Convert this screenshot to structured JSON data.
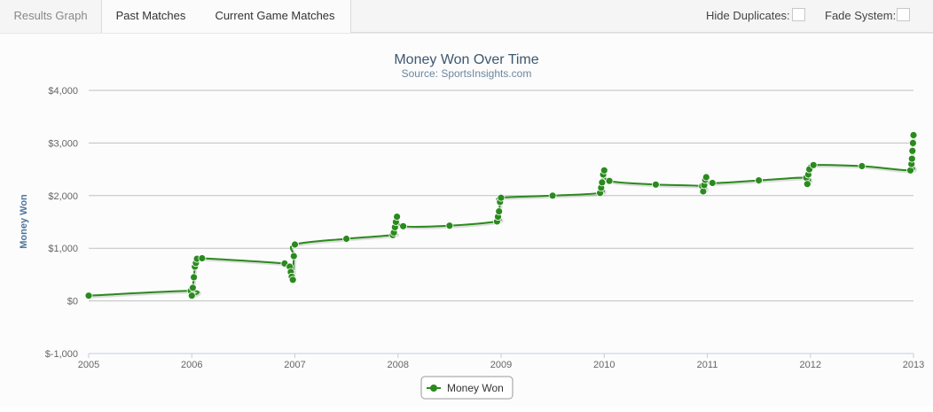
{
  "tabs": [
    {
      "label": "Results Graph",
      "active": true
    },
    {
      "label": "Past Matches",
      "active": false
    },
    {
      "label": "Current Game Matches",
      "active": false
    }
  ],
  "options": {
    "hide_duplicates_label": "Hide Duplicates:",
    "hide_duplicates_checked": false,
    "fade_system_label": "Fade System:",
    "fade_system_checked": false
  },
  "chart_data": {
    "type": "line",
    "title": "Money Won Over Time",
    "subtitle": "Source: SportsInsights.com",
    "ylabel": "Money Won",
    "xlim": [
      2005,
      2013
    ],
    "ylim": [
      -1000,
      4000
    ],
    "x_ticks": [
      "2005",
      "2006",
      "2007",
      "2008",
      "2009",
      "2010",
      "2011",
      "2012",
      "2013"
    ],
    "y_ticks": [
      "$-1,000",
      "$0",
      "$1,000",
      "$2,000",
      "$3,000",
      "$4,000"
    ],
    "y_tick_values": [
      -1000,
      0,
      1000,
      2000,
      3000,
      4000
    ],
    "grid": true,
    "legend_position": "bottom-center",
    "line_color": "#2b8a1e",
    "series": [
      {
        "name": "Money Won",
        "points": [
          [
            2005.0,
            100
          ],
          [
            2005.99,
            190
          ],
          [
            2006.0,
            100
          ],
          [
            2006.01,
            250
          ],
          [
            2006.02,
            450
          ],
          [
            2006.03,
            650
          ],
          [
            2006.04,
            720
          ],
          [
            2006.05,
            800
          ],
          [
            2006.1,
            810
          ],
          [
            2006.9,
            710
          ],
          [
            2006.95,
            650
          ],
          [
            2006.96,
            550
          ],
          [
            2006.97,
            460
          ],
          [
            2006.98,
            400
          ],
          [
            2006.99,
            850
          ],
          [
            2007.0,
            1070
          ],
          [
            2007.5,
            1180
          ],
          [
            2007.95,
            1250
          ],
          [
            2007.96,
            1300
          ],
          [
            2007.97,
            1400
          ],
          [
            2007.98,
            1500
          ],
          [
            2007.99,
            1600
          ],
          [
            2008.05,
            1420
          ],
          [
            2008.5,
            1430
          ],
          [
            2008.96,
            1510
          ],
          [
            2008.97,
            1600
          ],
          [
            2008.98,
            1700
          ],
          [
            2008.99,
            1880
          ],
          [
            2009.0,
            1960
          ],
          [
            2009.5,
            2000
          ],
          [
            2009.96,
            2050
          ],
          [
            2009.97,
            2150
          ],
          [
            2009.98,
            2250
          ],
          [
            2009.99,
            2400
          ],
          [
            2010.0,
            2480
          ],
          [
            2010.05,
            2280
          ],
          [
            2010.5,
            2210
          ],
          [
            2010.95,
            2180
          ],
          [
            2010.96,
            2080
          ],
          [
            2010.97,
            2200
          ],
          [
            2010.98,
            2300
          ],
          [
            2010.99,
            2350
          ],
          [
            2011.05,
            2240
          ],
          [
            2011.5,
            2290
          ],
          [
            2011.96,
            2340
          ],
          [
            2011.97,
            2220
          ],
          [
            2011.98,
            2400
          ],
          [
            2011.99,
            2500
          ],
          [
            2012.03,
            2580
          ],
          [
            2012.5,
            2560
          ],
          [
            2012.97,
            2480
          ],
          [
            2012.98,
            2600
          ],
          [
            2012.985,
            2700
          ],
          [
            2012.99,
            2850
          ],
          [
            2012.995,
            3000
          ],
          [
            2013.0,
            3150
          ]
        ]
      }
    ]
  }
}
